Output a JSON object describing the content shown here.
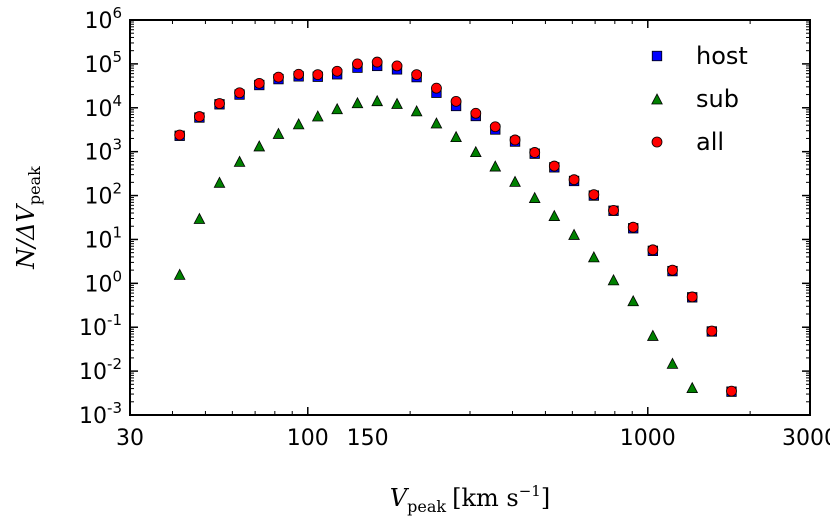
{
  "chart_data": {
    "type": "scatter",
    "title": "",
    "xlabel": "V_peak [km s^-1]",
    "ylabel": "N/ΔV_peak",
    "xlabel_parts": {
      "var": "V",
      "sub": "peak",
      "unit_open": "[km s",
      "unit_exp": "−1",
      "unit_close": "]"
    },
    "ylabel_parts": {
      "num": "N/ΔV",
      "sub": "peak"
    },
    "xscale": "log",
    "yscale": "log",
    "xlim": [
      30,
      3000
    ],
    "ylim": [
      0.001,
      1000000
    ],
    "x_ticks": [
      {
        "value": 30,
        "label": "30"
      },
      {
        "value": 100,
        "label": "100"
      },
      {
        "value": 150,
        "label": "150"
      },
      {
        "value": 1000,
        "label": "1000"
      },
      {
        "value": 3000,
        "label": "3000"
      }
    ],
    "y_ticks": [
      {
        "value": 0.001,
        "base": "10",
        "exp": "-3"
      },
      {
        "value": 0.01,
        "base": "10",
        "exp": "-2"
      },
      {
        "value": 0.1,
        "base": "10",
        "exp": "-1"
      },
      {
        "value": 1,
        "base": "10",
        "exp": "0"
      },
      {
        "value": 10,
        "base": "10",
        "exp": "1"
      },
      {
        "value": 100,
        "base": "10",
        "exp": "2"
      },
      {
        "value": 1000,
        "base": "10",
        "exp": "3"
      },
      {
        "value": 10000,
        "base": "10",
        "exp": "4"
      },
      {
        "value": 100000,
        "base": "10",
        "exp": "5"
      },
      {
        "value": 1000000,
        "base": "10",
        "exp": "6"
      }
    ],
    "legend_position": "top-right",
    "series": [
      {
        "name": "host",
        "marker": "square",
        "color": "#0000ff",
        "points": [
          [
            42,
            2300
          ],
          [
            48,
            6000
          ],
          [
            55,
            12000
          ],
          [
            63,
            20000
          ],
          [
            72,
            33000
          ],
          [
            82,
            45000
          ],
          [
            94,
            52000
          ],
          [
            107,
            51000
          ],
          [
            122,
            58000
          ],
          [
            140,
            82000
          ],
          [
            160,
            90000
          ],
          [
            183,
            75000
          ],
          [
            209,
            50000
          ],
          [
            239,
            22000
          ],
          [
            273,
            11000
          ],
          [
            312,
            6500
          ],
          [
            356,
            3200
          ],
          [
            407,
            1700
          ],
          [
            465,
            900
          ],
          [
            531,
            440
          ],
          [
            607,
            215
          ],
          [
            694,
            100
          ],
          [
            793,
            45
          ],
          [
            906,
            18
          ],
          [
            1035,
            5.5
          ],
          [
            1182,
            1.9
          ],
          [
            1351,
            0.48
          ],
          [
            1543,
            0.08
          ],
          [
            1763,
            0.0034
          ]
        ]
      },
      {
        "name": "sub",
        "marker": "triangle",
        "color": "#008000",
        "points": [
          [
            42,
            1.6
          ],
          [
            48,
            30
          ],
          [
            55,
            200
          ],
          [
            63,
            600
          ],
          [
            72,
            1350
          ],
          [
            82,
            2600
          ],
          [
            94,
            4300
          ],
          [
            107,
            6500
          ],
          [
            122,
            9500
          ],
          [
            140,
            13000
          ],
          [
            160,
            14500
          ],
          [
            183,
            12500
          ],
          [
            209,
            8500
          ],
          [
            239,
            4500
          ],
          [
            273,
            2200
          ],
          [
            312,
            1000
          ],
          [
            356,
            470
          ],
          [
            407,
            210
          ],
          [
            465,
            90
          ],
          [
            531,
            35
          ],
          [
            607,
            13
          ],
          [
            694,
            4
          ],
          [
            793,
            1.2
          ],
          [
            906,
            0.4
          ],
          [
            1035,
            0.065
          ],
          [
            1182,
            0.015
          ],
          [
            1351,
            0.0042
          ]
        ]
      },
      {
        "name": "all",
        "marker": "circle",
        "color": "#ff0000",
        "points": [
          [
            42,
            2400
          ],
          [
            48,
            6300
          ],
          [
            55,
            12500
          ],
          [
            63,
            22000
          ],
          [
            72,
            36000
          ],
          [
            82,
            50000
          ],
          [
            94,
            58000
          ],
          [
            107,
            57000
          ],
          [
            122,
            68000
          ],
          [
            140,
            100000
          ],
          [
            160,
            110000
          ],
          [
            183,
            90000
          ],
          [
            209,
            57000
          ],
          [
            239,
            28000
          ],
          [
            273,
            14000
          ],
          [
            312,
            7500
          ],
          [
            356,
            3700
          ],
          [
            407,
            1850
          ],
          [
            465,
            960
          ],
          [
            531,
            470
          ],
          [
            607,
            230
          ],
          [
            694,
            105
          ],
          [
            793,
            46
          ],
          [
            906,
            19
          ],
          [
            1035,
            5.8
          ],
          [
            1182,
            2.0
          ],
          [
            1351,
            0.49
          ],
          [
            1543,
            0.082
          ],
          [
            1763,
            0.0035
          ]
        ]
      }
    ]
  }
}
